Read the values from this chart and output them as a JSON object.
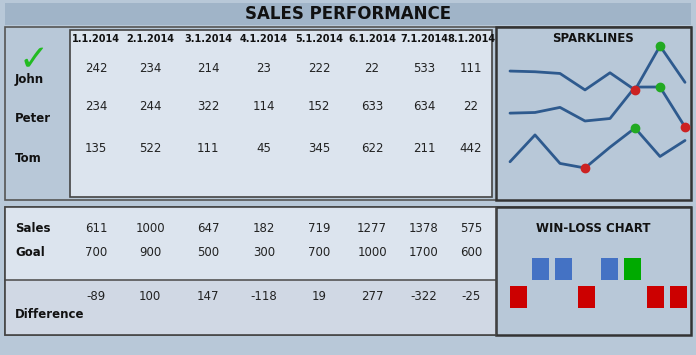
{
  "title": "SALES PERFORMANCE",
  "bg_color": "#b8c8d8",
  "title_bar_color": "#a0b4c8",
  "header_row": [
    "1.1.2014",
    "2.1.2014",
    "3.1.2014",
    "4.1.2014",
    "5.1.2014",
    "6.1.2014",
    "7.1.2014",
    "8.1.2014"
  ],
  "persons": [
    "John",
    "Peter",
    "Tom"
  ],
  "sparklines_data": [
    [
      242,
      234,
      214,
      23,
      222,
      22,
      533,
      111
    ],
    [
      234,
      244,
      322,
      114,
      152,
      633,
      634,
      22
    ],
    [
      135,
      522,
      111,
      45,
      345,
      622,
      211,
      442
    ]
  ],
  "sales_row": [
    611,
    1000,
    647,
    182,
    719,
    1277,
    1378,
    575
  ],
  "goal_row": [
    700,
    900,
    500,
    300,
    700,
    1000,
    1700,
    600
  ],
  "diff_row": [
    -89,
    100,
    147,
    -118,
    19,
    277,
    -322,
    -25
  ],
  "line_color": "#2e5a8e",
  "line_width": 2.0,
  "marker_high_color": "#22aa22",
  "marker_low_color": "#cc2222",
  "win_color": "#4472c4",
  "loss_color": "#cc0000",
  "special_win_color": "#00aa00",
  "sparklines_label": "SPARKLINES",
  "winloss_label": "WIN-LOSS CHART",
  "check_color": "#22bb22",
  "upper_table_bg": "#dce4ee",
  "lower_table_bg": "#dce4ee",
  "diff_bg": "#d0d8e4",
  "panel_bg": "#c8d4e0",
  "data_text_color": "#222222",
  "label_text_color": "#111111"
}
